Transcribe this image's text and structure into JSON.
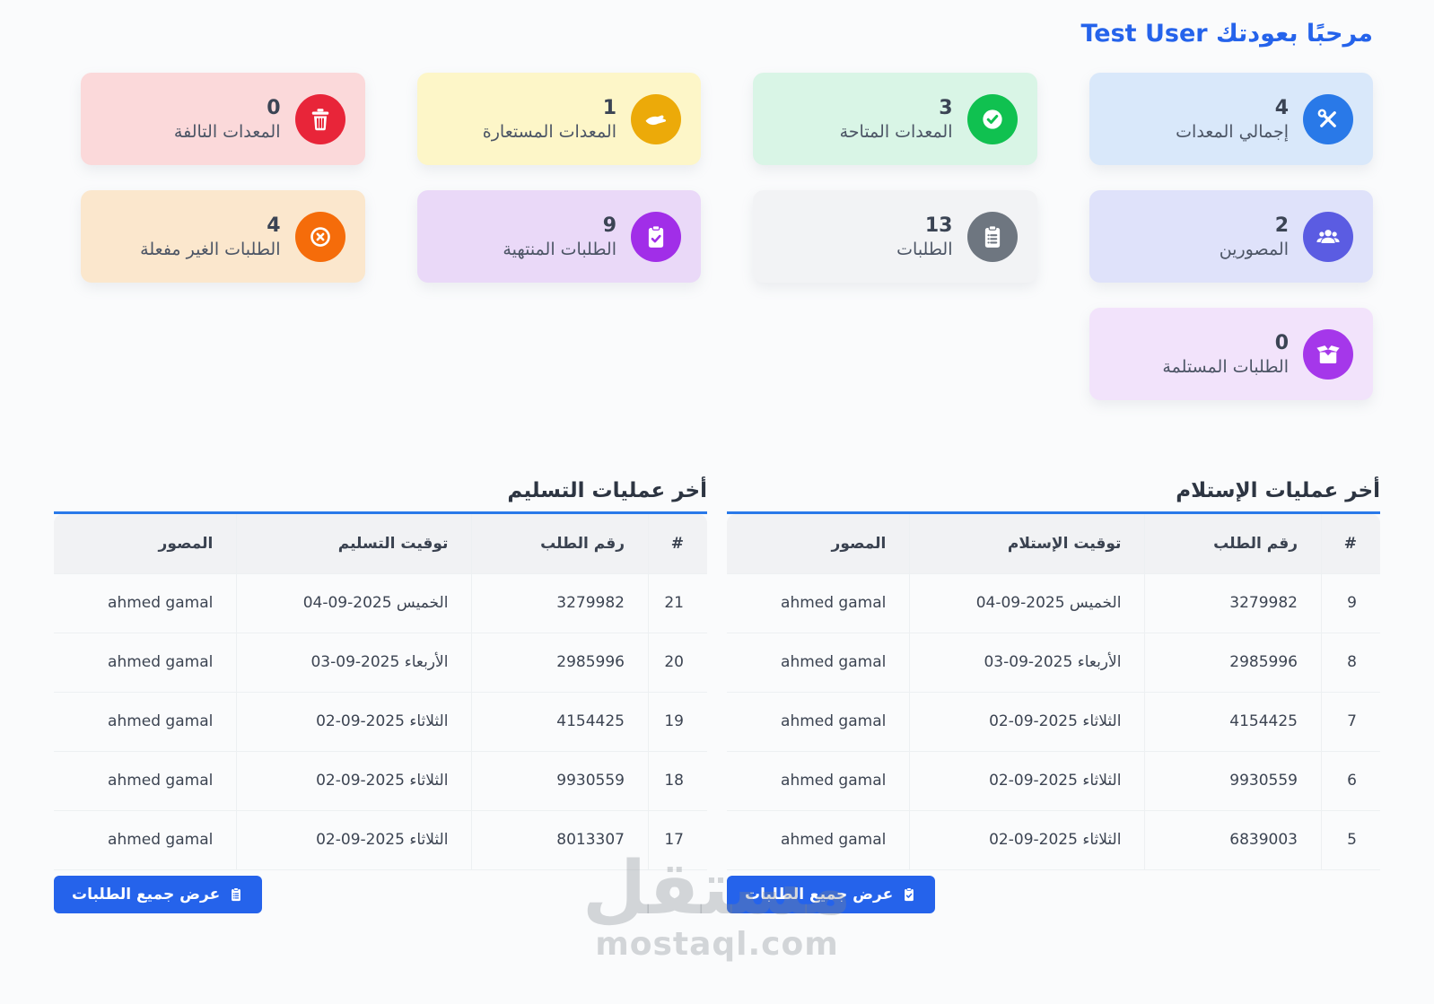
{
  "header": {
    "welcome": "مرحبًا بعودتك Test User"
  },
  "colors": {
    "accent": "#2563eb",
    "title_underline": "#2979e9"
  },
  "stats": [
    {
      "label": "إجمالي المعدات",
      "value": "4",
      "icon": "tools-icon",
      "bg": "#d9e8fa",
      "iconBg": "#2979e8"
    },
    {
      "label": "المعدات المتاحة",
      "value": "3",
      "icon": "check-circle-icon",
      "bg": "#d9f5e6",
      "iconBg": "#10c150"
    },
    {
      "label": "المعدات المستعارة",
      "value": "1",
      "icon": "hand-icon",
      "bg": "#fdf6c8",
      "iconBg": "#ecaa09"
    },
    {
      "label": "المعدات التالفة",
      "value": "0",
      "icon": "trash-icon",
      "bg": "#fbd9da",
      "iconBg": "#e82539"
    },
    {
      "label": "المصورين",
      "value": "2",
      "icon": "users-icon",
      "bg": "#dfe2fa",
      "iconBg": "#5b5ce2"
    },
    {
      "label": "الطلبات",
      "value": "13",
      "icon": "clipboard-list-icon",
      "bg": "#f2f3f5",
      "iconBg": "#6e7680"
    },
    {
      "label": "الطلبات المنتهية",
      "value": "9",
      "icon": "clipboard-check-icon",
      "bg": "#ead9f8",
      "iconBg": "#a12ee8"
    },
    {
      "label": "الطلبات الغير مفعلة",
      "value": "4",
      "icon": "x-circle-icon",
      "bg": "#fbe7cd",
      "iconBg": "#f56c0a"
    },
    {
      "label": "الطلبات المستلمة",
      "value": "0",
      "icon": "box-icon",
      "bg": "#f2e3fb",
      "iconBg": "#a537ea"
    }
  ],
  "tables": [
    {
      "title": "أخر عمليات الإستلام",
      "columns": [
        "#",
        "رقم الطلب",
        "توقيت الإستلام",
        "المصور"
      ],
      "rows": [
        [
          "9",
          "3279982",
          "الخميس 2025-09-04",
          "ahmed gamal"
        ],
        [
          "8",
          "2985996",
          "الأربعاء 2025-09-03",
          "ahmed gamal"
        ],
        [
          "7",
          "4154425",
          "الثلاثاء 2025-09-02",
          "ahmed gamal"
        ],
        [
          "6",
          "9930559",
          "الثلاثاء 2025-09-02",
          "ahmed gamal"
        ],
        [
          "5",
          "6839003",
          "الثلاثاء 2025-09-02",
          "ahmed gamal"
        ]
      ],
      "button": {
        "label": "عرض جميع الطلبات",
        "icon": "clipboard-check-icon"
      }
    },
    {
      "title": "أخر عمليات التسليم",
      "columns": [
        "#",
        "رقم الطلب",
        "توقيت التسليم",
        "المصور"
      ],
      "rows": [
        [
          "21",
          "3279982",
          "الخميس 2025-09-04",
          "ahmed gamal"
        ],
        [
          "20",
          "2985996",
          "الأربعاء 2025-09-03",
          "ahmed gamal"
        ],
        [
          "19",
          "4154425",
          "الثلاثاء 2025-09-02",
          "ahmed gamal"
        ],
        [
          "18",
          "9930559",
          "الثلاثاء 2025-09-02",
          "ahmed gamal"
        ],
        [
          "17",
          "8013307",
          "الثلاثاء 2025-09-02",
          "ahmed gamal"
        ]
      ],
      "button": {
        "label": "عرض جميع الطلبات",
        "icon": "clipboard-list-icon"
      }
    }
  ],
  "watermark": {
    "text_ar": "مستقل",
    "text_en": "mostaql.com"
  }
}
